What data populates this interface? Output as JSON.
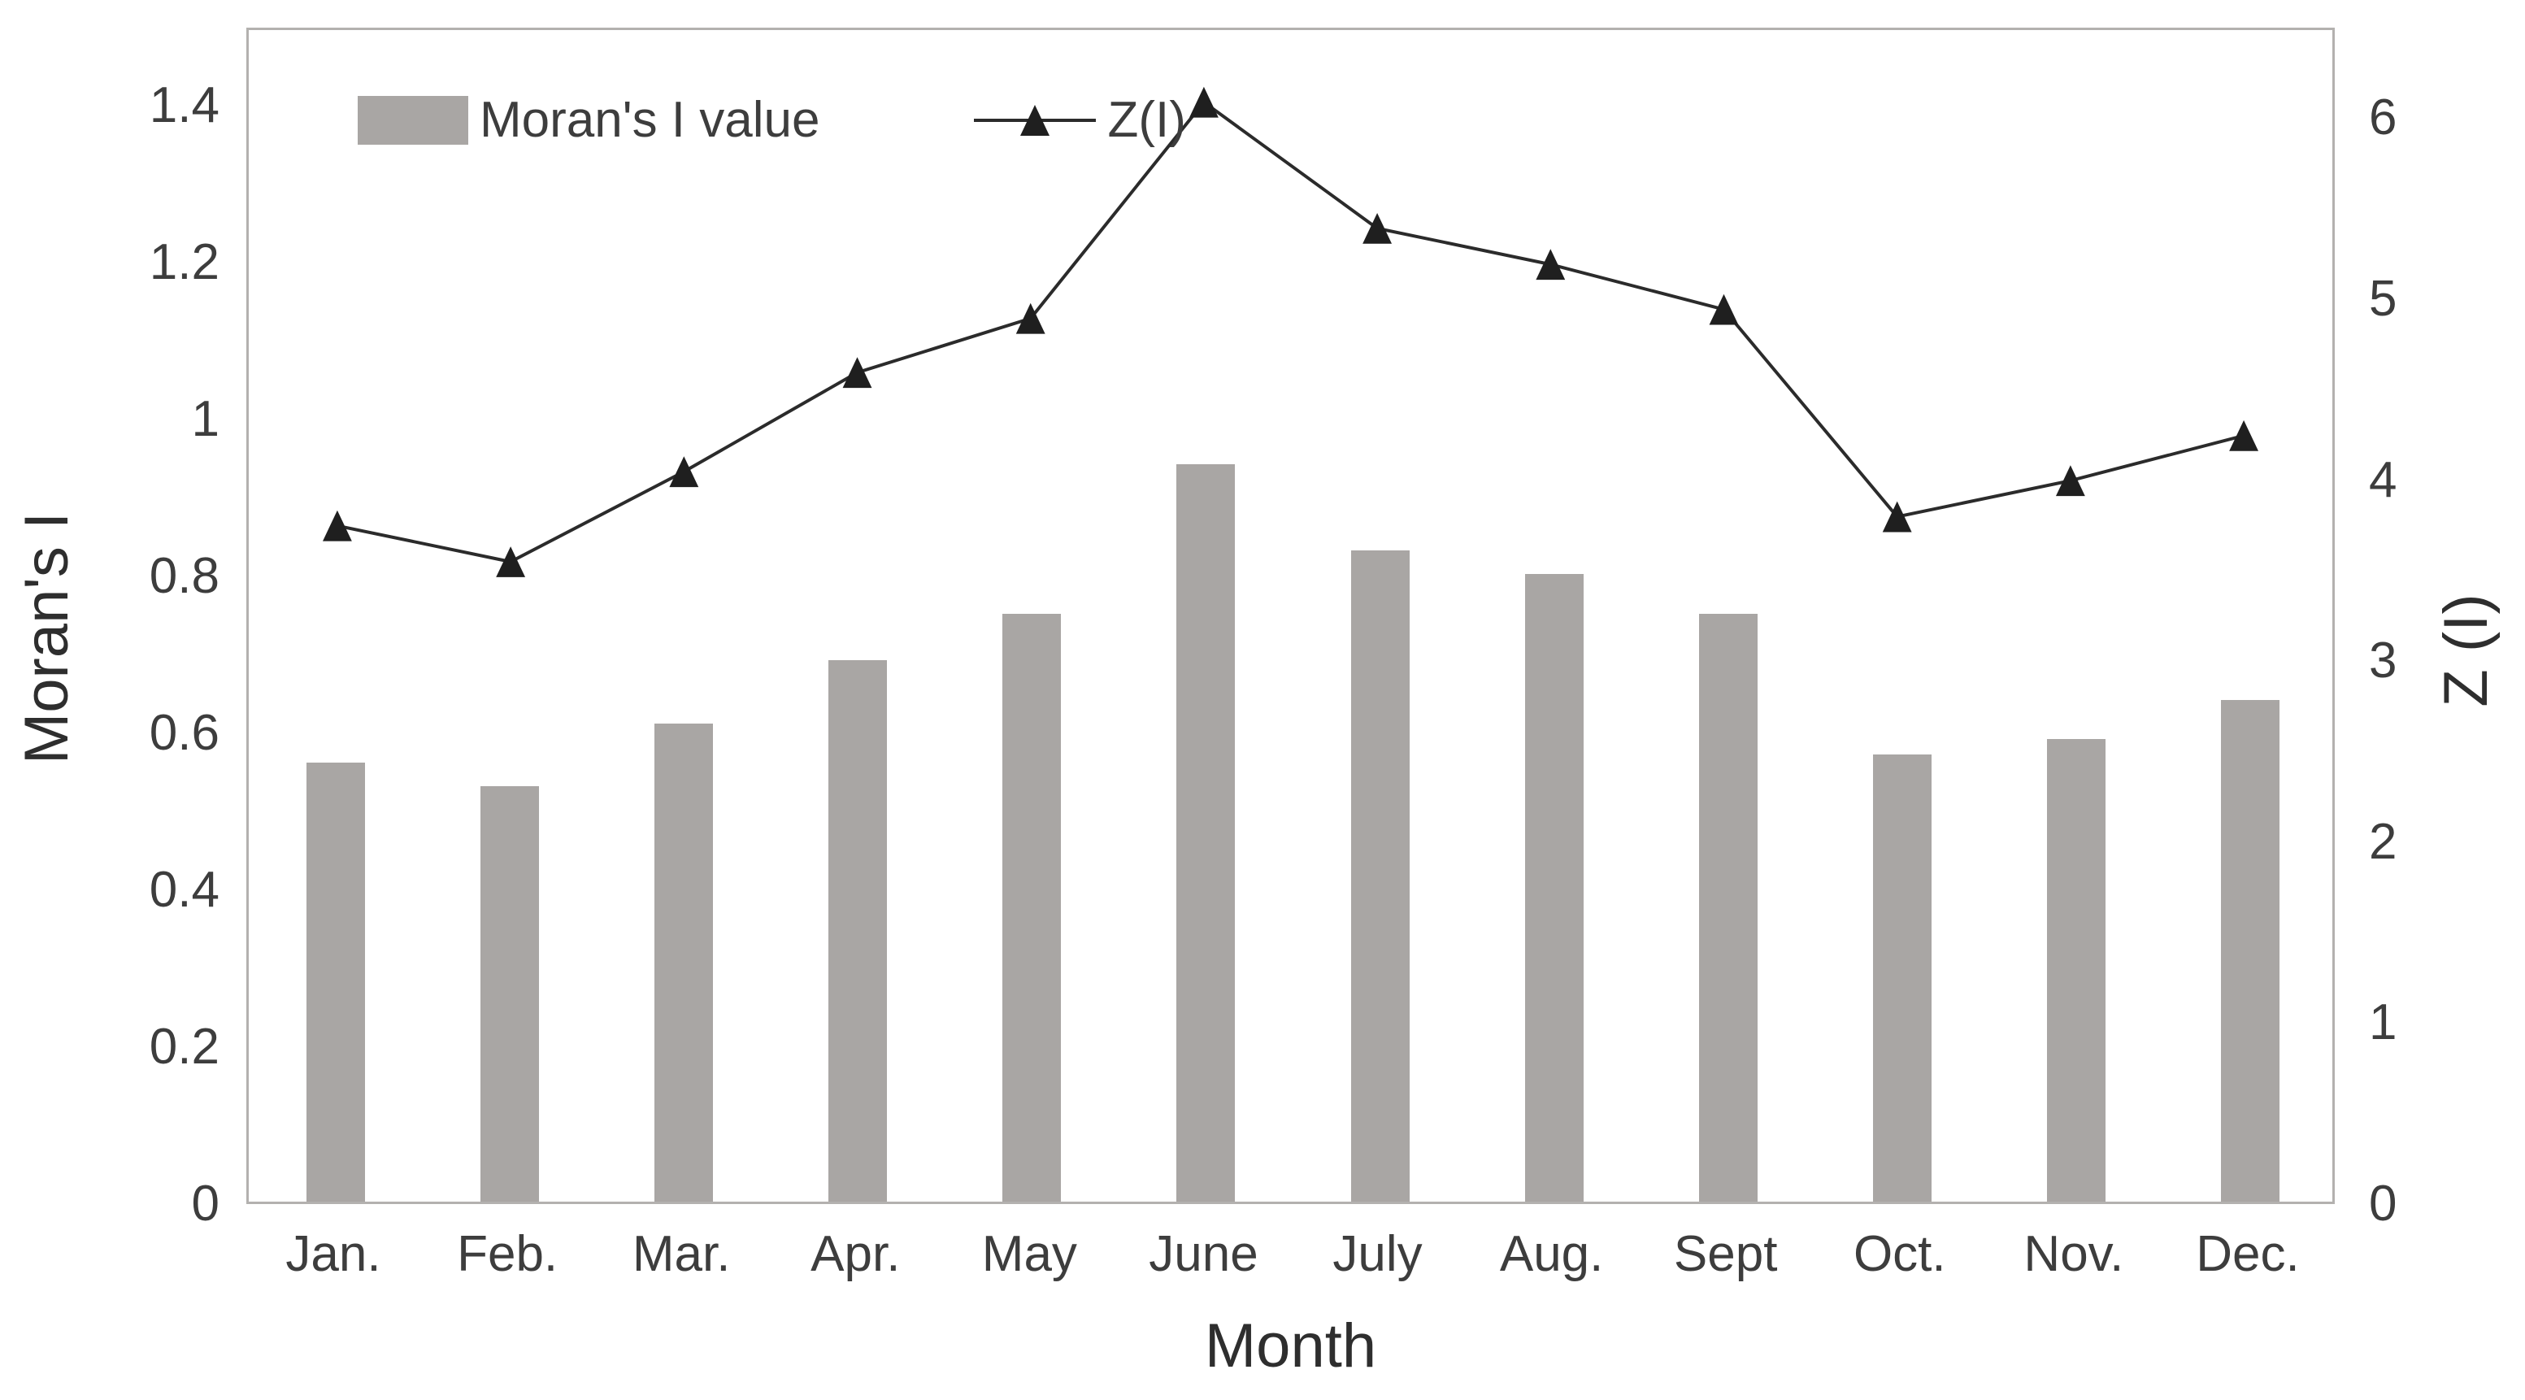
{
  "chart_data": {
    "type": "bar",
    "subtype": "combo-bar-line-dual-axis",
    "title": "",
    "categories": [
      "Jan.",
      "Feb.",
      "Mar.",
      "Apr.",
      "May",
      "June",
      "July",
      "Aug.",
      "Sept",
      "Oct.",
      "Nov.",
      "Dec."
    ],
    "series": [
      {
        "name": "Moran's I value",
        "type": "bar",
        "axis": "left",
        "values": [
          0.56,
          0.53,
          0.61,
          0.69,
          0.75,
          0.94,
          0.83,
          0.8,
          0.75,
          0.57,
          0.59,
          0.64
        ]
      },
      {
        "name": "Z(I)",
        "type": "line",
        "axis": "right",
        "marker": "filled-triangle-up",
        "values": [
          3.75,
          3.55,
          4.05,
          4.6,
          4.9,
          6.1,
          5.4,
          5.2,
          4.95,
          3.8,
          4.0,
          4.25
        ]
      }
    ],
    "xlabel": "Month",
    "ylabel_left": "Moran's I",
    "ylabel_right": "Z (I)",
    "left_axis": {
      "min": 0,
      "max": 1.5,
      "tick_labels": [
        "0",
        "0.2",
        "0.4",
        "0.6",
        "0.8",
        "1",
        "1.2",
        "1.4"
      ],
      "tick_values": [
        0,
        0.2,
        0.4,
        0.6,
        0.8,
        1.0,
        1.2,
        1.4
      ]
    },
    "right_axis": {
      "min": 0,
      "max": 6.5,
      "tick_labels": [
        "0",
        "1",
        "2",
        "3",
        "4",
        "5",
        "6"
      ],
      "tick_values": [
        0,
        1,
        2,
        3,
        4,
        5,
        6
      ]
    },
    "legend": {
      "position": "inside-top-left",
      "entries": [
        "Moran's I value",
        "Z(I)"
      ]
    },
    "grid": false,
    "colors": {
      "bar": "#a9a6a4",
      "line": "#2b2b2b",
      "marker": "#1f1f1f",
      "tick_text": "#3d3d3d",
      "title_text": "#2e2e2e",
      "plot_border": "#b3b1af",
      "background": "#ffffff"
    }
  }
}
